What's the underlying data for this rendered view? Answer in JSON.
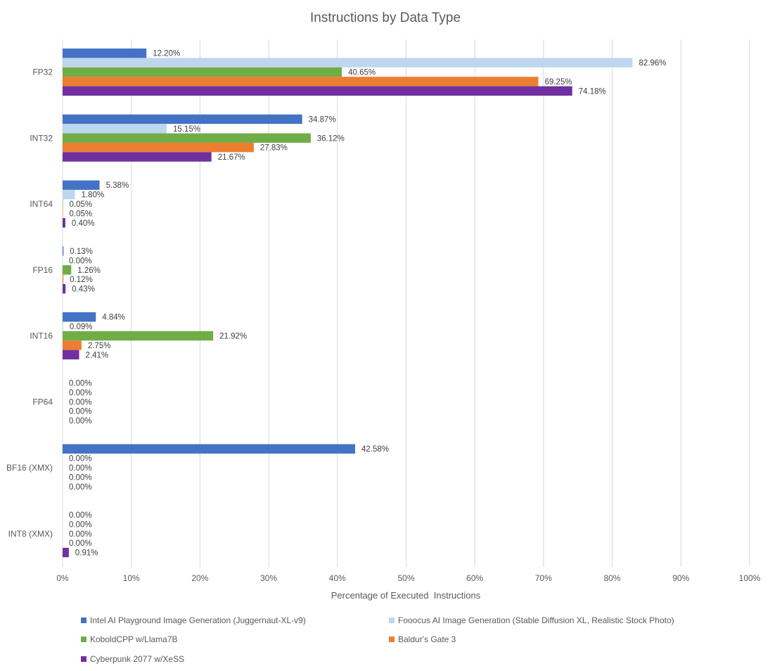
{
  "chart_data": {
    "type": "bar",
    "orientation": "horizontal",
    "title": "Instructions by Data Type",
    "xlabel": "Percentage of Executed  Instructions",
    "ylabel": "",
    "xlim": [
      0,
      100
    ],
    "x_ticks": [
      "0%",
      "10%",
      "20%",
      "30%",
      "40%",
      "50%",
      "60%",
      "70%",
      "80%",
      "90%",
      "100%"
    ],
    "grid": "vertical",
    "legend_position": "bottom",
    "categories": [
      "FP32",
      "INT32",
      "INT64",
      "FP16",
      "INT16",
      "FP64",
      "BF16 (XMX)",
      "INT8 (XMX)"
    ],
    "series": [
      {
        "name": "Intel AI Playground Image Generation (Juggernaut-XL-v9)",
        "color": "#4472C4",
        "values": [
          12.2,
          34.87,
          5.38,
          0.13,
          4.84,
          0.0,
          42.58,
          0.0
        ],
        "labels": [
          "12.20%",
          "34.87%",
          "5.38%",
          "0.13%",
          "4.84%",
          "0.00%",
          "42.58%",
          "0.00%"
        ]
      },
      {
        "name": "Fooocus AI Image Generation (Stable Diffusion XL, Realistic Stock Photo)",
        "color": "#BDD7EE",
        "values": [
          82.96,
          15.15,
          1.8,
          0.0,
          0.09,
          0.0,
          0.0,
          0.0
        ],
        "labels": [
          "82.96%",
          "15.15%",
          "1.80%",
          "0.00%",
          "0.09%",
          "0.00%",
          "0.00%",
          "0.00%"
        ]
      },
      {
        "name": "KoboldCPP w/Llama7B",
        "color": "#70AD47",
        "values": [
          40.65,
          36.12,
          0.05,
          1.26,
          21.92,
          0.0,
          0.0,
          0.0
        ],
        "labels": [
          "40.65%",
          "36.12%",
          "0.05%",
          "1.26%",
          "21.92%",
          "0.00%",
          "0.00%",
          "0.00%"
        ]
      },
      {
        "name": "Baldur's Gate 3",
        "color": "#ED7D31",
        "values": [
          69.25,
          27.83,
          0.05,
          0.12,
          2.75,
          0.0,
          0.0,
          0.0
        ],
        "labels": [
          "69.25%",
          "27.83%",
          "0.05%",
          "0.12%",
          "2.75%",
          "0.00%",
          "0.00%",
          "0.00%"
        ]
      },
      {
        "name": "Cyberpunk 2077 w/XeSS",
        "color": "#7030A0",
        "values": [
          74.18,
          21.67,
          0.4,
          0.43,
          2.41,
          0.0,
          0.0,
          0.91
        ],
        "labels": [
          "74.18%",
          "21.67%",
          "0.40%",
          "0.43%",
          "2.41%",
          "0.00%",
          "0.00%",
          "0.91%"
        ]
      }
    ]
  }
}
